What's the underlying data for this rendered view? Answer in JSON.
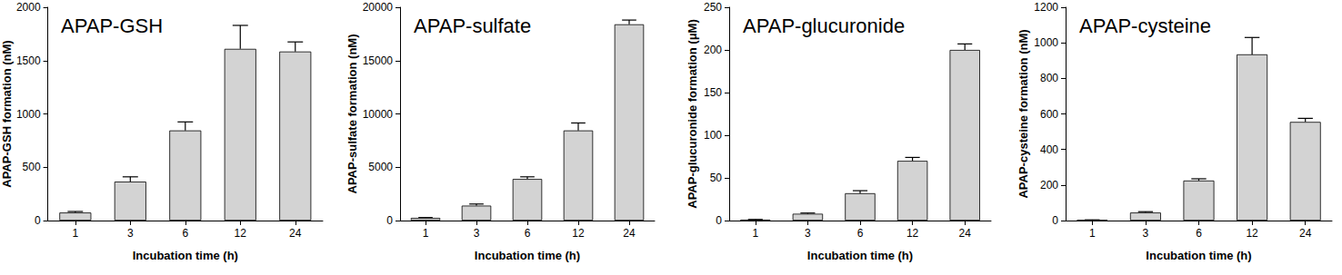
{
  "chart_data": [
    {
      "type": "bar",
      "title": "APAP-GSH",
      "x_label": "Incubation time (h)",
      "y_label": "APAP-GSH formation (nM)",
      "categories": [
        "1",
        "3",
        "6",
        "12",
        "24"
      ],
      "values": [
        75,
        365,
        845,
        1610,
        1585
      ],
      "errors": [
        10,
        45,
        80,
        220,
        90
      ],
      "color": "#d3d3d3",
      "ylim": [
        0,
        2000
      ],
      "yticks": [
        0,
        500,
        1000,
        1500,
        2000
      ]
    },
    {
      "type": "bar",
      "title": "APAP-sulfate",
      "x_label": "Incubation time (h)",
      "y_label": "APAP-sulfate formation (nM)",
      "categories": [
        "1",
        "3",
        "6",
        "12",
        "24"
      ],
      "values": [
        250,
        1400,
        3900,
        8450,
        18400
      ],
      "errors": [
        30,
        150,
        200,
        700,
        400
      ],
      "color": "#d3d3d3",
      "ylim": [
        0,
        20000
      ],
      "yticks": [
        0,
        5000,
        10000,
        15000,
        20000
      ]
    },
    {
      "type": "bar",
      "title": "APAP-glucuronide",
      "x_label": "Incubation time (h)",
      "y_label": "APAP-glucuronide formation (μM)",
      "categories": [
        "1",
        "3",
        "6",
        "12",
        "24"
      ],
      "values": [
        1,
        8,
        32,
        70,
        200
      ],
      "errors": [
        0.3,
        0.8,
        3,
        4,
        7
      ],
      "color": "#d3d3d3",
      "ylim": [
        0,
        250
      ],
      "yticks": [
        0,
        50,
        100,
        150,
        200,
        250
      ]
    },
    {
      "type": "bar",
      "title": "APAP-cysteine",
      "x_label": "Incubation time (h)",
      "y_label": "APAP-cysteine formation (nM)",
      "categories": [
        "1",
        "3",
        "6",
        "12",
        "24"
      ],
      "values": [
        3,
        45,
        225,
        935,
        555
      ],
      "errors": [
        1,
        5,
        10,
        95,
        20
      ],
      "color": "#d3d3d3",
      "ylim": [
        0,
        1200
      ],
      "yticks": [
        0,
        200,
        400,
        600,
        800,
        1000,
        1200
      ]
    }
  ]
}
